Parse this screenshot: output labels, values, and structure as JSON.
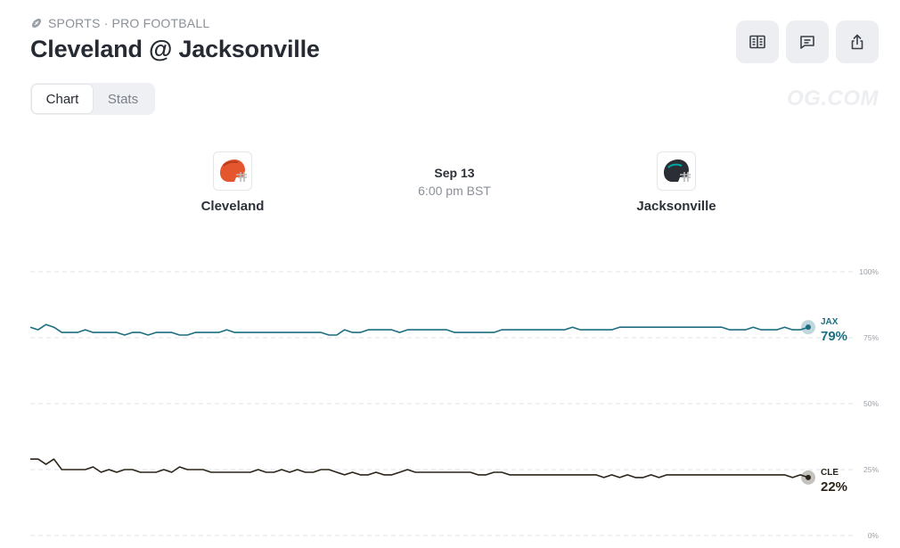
{
  "header": {
    "category": "SPORTS · PRO FOOTBALL",
    "title": "Cleveland @ Jacksonville",
    "watermark": "OG.COM"
  },
  "actions": [
    {
      "icon": "book-icon"
    },
    {
      "icon": "comment-icon"
    },
    {
      "icon": "share-icon"
    }
  ],
  "tabs": [
    {
      "label": "Chart",
      "active": true
    },
    {
      "label": "Stats",
      "active": false
    }
  ],
  "matchup": {
    "home": {
      "name": "Cleveland",
      "helmet_color": "#e4572e",
      "facemask_color": "#b9b9b9"
    },
    "away": {
      "name": "Jacksonville",
      "helmet_color": "#2b2f35",
      "facemask_color": "#b9b9b9",
      "accent_color": "#00a7a7"
    },
    "date": "Sep 13",
    "time": "6:00 pm BST"
  },
  "chart_data": {
    "type": "line",
    "ylim": [
      0,
      100
    ],
    "y_ticks": [
      "100%",
      "75%",
      "50%",
      "25%",
      "0%"
    ],
    "grid": true,
    "series": [
      {
        "name": "JAX",
        "color": "#1d6f80",
        "end_label": "79%",
        "values": [
          79,
          78,
          80,
          79,
          77,
          77,
          77,
          78,
          77,
          77,
          77,
          77,
          76,
          77,
          77,
          76,
          77,
          77,
          77,
          76,
          76,
          77,
          77,
          77,
          77,
          78,
          77,
          77,
          77,
          77,
          77,
          77,
          77,
          77,
          77,
          77,
          77,
          77,
          76,
          76,
          78,
          77,
          77,
          78,
          78,
          78,
          78,
          77,
          78,
          78,
          78,
          78,
          78,
          78,
          77,
          77,
          77,
          77,
          77,
          77,
          78,
          78,
          78,
          78,
          78,
          78,
          78,
          78,
          78,
          79,
          78,
          78,
          78,
          78,
          78,
          79,
          79,
          79,
          79,
          79,
          79,
          79,
          79,
          79,
          79,
          79,
          79,
          79,
          79,
          78,
          78,
          78,
          79,
          78,
          78,
          78,
          79,
          78,
          78,
          79
        ]
      },
      {
        "name": "CLE",
        "color": "#2b2418",
        "end_label": "22%",
        "values": [
          29,
          29,
          27,
          29,
          25,
          25,
          25,
          25,
          26,
          24,
          25,
          24,
          25,
          25,
          24,
          24,
          24,
          25,
          24,
          26,
          25,
          25,
          25,
          24,
          24,
          24,
          24,
          24,
          24,
          25,
          24,
          24,
          25,
          24,
          25,
          24,
          24,
          25,
          25,
          24,
          23,
          24,
          23,
          23,
          24,
          23,
          23,
          24,
          25,
          24,
          24,
          24,
          24,
          24,
          24,
          24,
          24,
          23,
          23,
          24,
          24,
          23,
          23,
          23,
          23,
          23,
          23,
          23,
          23,
          23,
          23,
          23,
          23,
          22,
          23,
          22,
          23,
          22,
          22,
          23,
          22,
          23,
          23,
          23,
          23,
          23,
          23,
          23,
          23,
          23,
          23,
          23,
          23,
          23,
          23,
          23,
          23,
          22,
          23,
          22
        ]
      }
    ]
  }
}
